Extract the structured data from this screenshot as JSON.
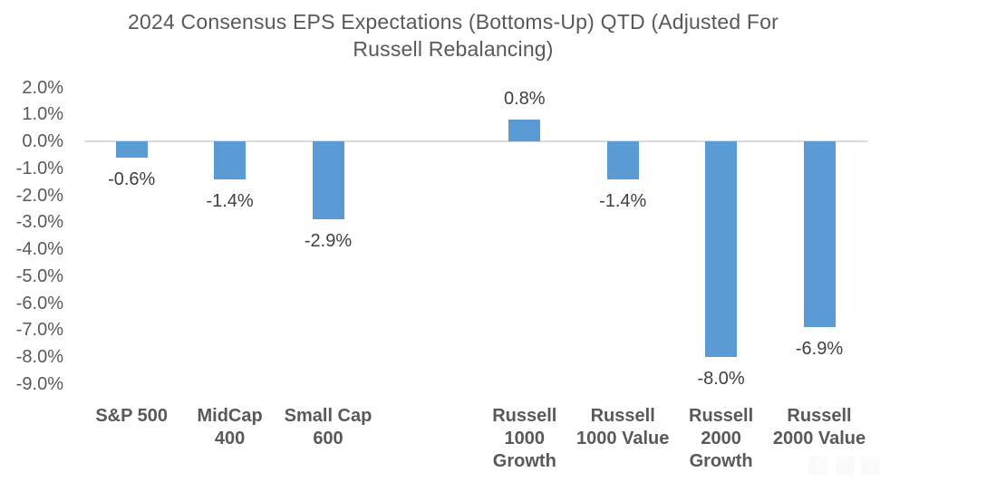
{
  "title": {
    "line1": "2024 Consensus EPS Expectations (Bottoms-Up) QTD (Adjusted For",
    "line2": "Russell Rebalancing)"
  },
  "chart_data": {
    "type": "bar",
    "title": "2024 Consensus EPS Expectations (Bottoms-Up) QTD (Adjusted For Russell Rebalancing)",
    "xlabel": "",
    "ylabel": "",
    "categories": [
      "S&P 500",
      "MidCap 400",
      "Small Cap 600",
      "Russell 1000 Growth",
      "Russell 1000 Value",
      "Russell 2000 Growth",
      "Russell 2000 Value"
    ],
    "category_label_lines": [
      [
        "S&P 500"
      ],
      [
        "MidCap",
        "400"
      ],
      [
        "Small Cap",
        "600"
      ],
      [
        "Russell",
        "1000",
        "Growth"
      ],
      [
        "Russell",
        "1000 Value"
      ],
      [
        "Russell",
        "2000",
        "Growth"
      ],
      [
        "Russell",
        "2000 Value"
      ]
    ],
    "values": [
      -0.6,
      -1.4,
      -2.9,
      0.8,
      -1.4,
      -8.0,
      -6.9
    ],
    "data_labels": [
      "-0.6%",
      "-1.4%",
      "-2.9%",
      "0.8%",
      "-1.4%",
      "-8.0%",
      "-6.9%"
    ],
    "slots": [
      0,
      1,
      2,
      4,
      5,
      6,
      7
    ],
    "slot_count": 8,
    "gap_slot_index": 3,
    "y_ticks": [
      "2.0%",
      "1.0%",
      "0.0%",
      "-1.0%",
      "-2.0%",
      "-3.0%",
      "-4.0%",
      "-5.0%",
      "-6.0%",
      "-7.0%",
      "-8.0%",
      "-9.0%"
    ],
    "ylim": [
      -9,
      2
    ],
    "grid": "zero-line-only",
    "legend": "none",
    "data_label_position": "outside-end",
    "colors": {
      "bar": "#5b9bd5",
      "axis_line": "#d9d9d9",
      "title_text": "#595959",
      "tick_text": "#595959",
      "data_label_text": "#404040",
      "category_text": "#595959"
    }
  },
  "watermark": {
    "icons": [
      {
        "name": "facebook-icon",
        "glyph": "f"
      },
      {
        "name": "twitter-icon",
        "glyph": "t"
      },
      {
        "name": "instagram-icon",
        "glyph": "o"
      }
    ]
  }
}
